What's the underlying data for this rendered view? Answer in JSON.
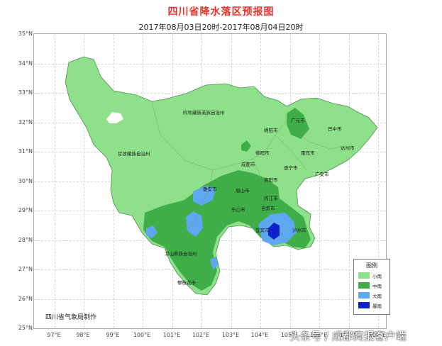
{
  "map": {
    "title": "四川省降水落区预报图",
    "subtitle": "2017年08月03日20时-2017年08月04日20时",
    "lat_labels": [
      "35°N",
      "34°N",
      "33°N",
      "32°N",
      "31°N",
      "30°N",
      "29°N",
      "28°N",
      "27°N",
      "26°N",
      "25°N"
    ],
    "lon_labels": [
      "97°E",
      "98°E",
      "99°E",
      "100°E",
      "101°E",
      "102°E",
      "103°E",
      "104°E",
      "105°E",
      "106°E",
      "107°E",
      "108°E"
    ],
    "credit": "四川省气象局制作",
    "watermark": "头条号 / 成都商报客户端",
    "cities": [
      {
        "name": "阿坝藏族羌族自治州"
      },
      {
        "name": "甘孜藏族自治州"
      },
      {
        "name": "凉山彝族自治州"
      },
      {
        "name": "攀枝花市"
      },
      {
        "name": "绵阳市"
      },
      {
        "name": "广元市"
      },
      {
        "name": "巴中市"
      },
      {
        "name": "达州市"
      },
      {
        "name": "南充市"
      },
      {
        "name": "德阳市"
      },
      {
        "name": "成都市"
      },
      {
        "name": "遂宁市"
      },
      {
        "name": "广安市"
      },
      {
        "name": "资阳市"
      },
      {
        "name": "雅安市"
      },
      {
        "name": "眉山市"
      },
      {
        "name": "内江市"
      },
      {
        "name": "乐山市"
      },
      {
        "name": "自贡市"
      },
      {
        "name": "宜宾市"
      },
      {
        "name": "泸州市"
      }
    ]
  },
  "legend": {
    "title": "图例",
    "items": [
      {
        "label": "小雨",
        "color": "#8ee08a"
      },
      {
        "label": "中雨",
        "color": "#3fae48"
      },
      {
        "label": "大雨",
        "color": "#5fa8f0"
      },
      {
        "label": "暴雨",
        "color": "#0a22c8"
      }
    ]
  }
}
